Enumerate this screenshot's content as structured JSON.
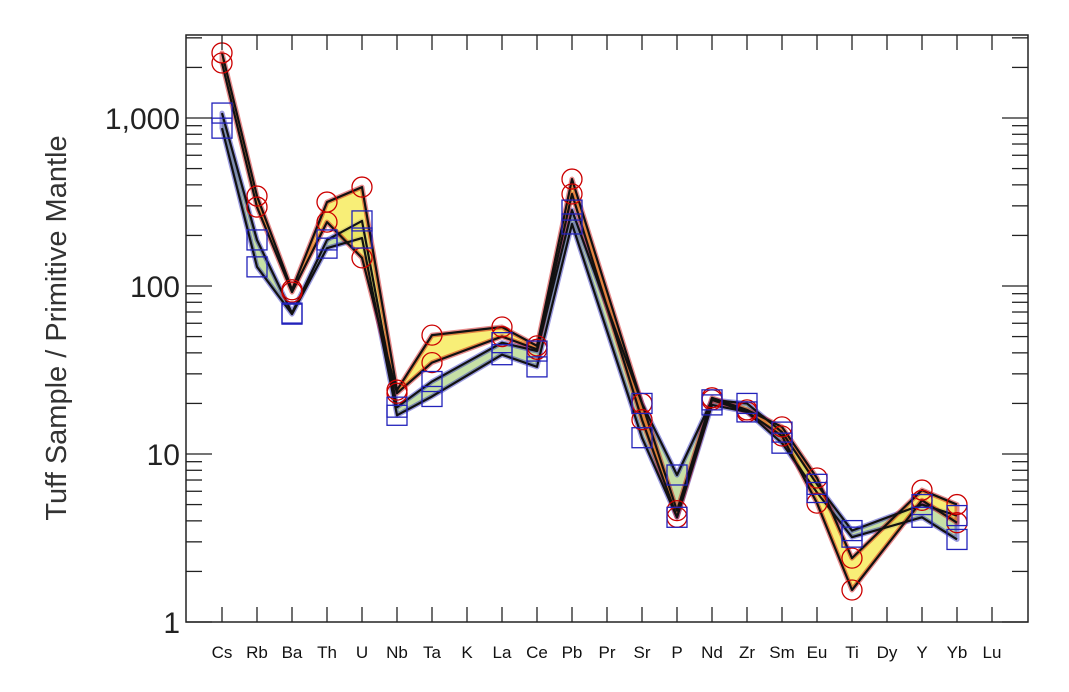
{
  "chart_data": {
    "type": "line",
    "title": "",
    "xlabel": "",
    "ylabel": "Tuff Sample / Primitive Mantle",
    "yscale": "log",
    "ylim": [
      1,
      3100
    ],
    "yticks": [
      1,
      10,
      100,
      1000
    ],
    "ytick_labels": [
      "1",
      "10",
      "100",
      "1,000"
    ],
    "categories": [
      "Cs",
      "Rb",
      "Ba",
      "Th",
      "U",
      "Nb",
      "Ta",
      "K",
      "La",
      "Ce",
      "Pb",
      "Pr",
      "Sr",
      "P",
      "Nd",
      "Zr",
      "Sm",
      "Eu",
      "Ti",
      "Dy",
      "Y",
      "Yb",
      "Lu"
    ],
    "series": [
      {
        "name": "red-upper",
        "group": "red",
        "color": "#cc0000",
        "fill": "#f5e84a",
        "values": [
          2440,
          343,
          95,
          316,
          388,
          24,
          51,
          null,
          57,
          44,
          433,
          null,
          20,
          4.6,
          21.6,
          18.3,
          14.5,
          7.2,
          2.4,
          null,
          6.1,
          5.0,
          null
        ]
      },
      {
        "name": "red-lower",
        "group": "red",
        "color": "#cc0000",
        "fill": "#f5e84a",
        "values": [
          2125,
          295,
          92,
          240,
          147,
          23,
          35,
          null,
          50,
          42,
          353,
          null,
          16,
          4.2,
          21,
          17.8,
          12.8,
          5.1,
          1.55,
          null,
          5.3,
          3.9,
          null
        ]
      },
      {
        "name": "blue-upper",
        "group": "blue",
        "color": "#2222bb",
        "fill": "#b8d890",
        "values": [
          1070,
          188,
          69,
          188,
          244,
          19,
          27,
          null,
          46,
          41,
          283,
          null,
          20,
          7.5,
          21,
          20,
          13.5,
          6.6,
          3.5,
          null,
          5.0,
          4.3,
          null
        ]
      },
      {
        "name": "blue-lower",
        "group": "blue",
        "color": "#2222bb",
        "fill": "#b8d890",
        "values": [
          870,
          130,
          68,
          168,
          193,
          17,
          22,
          null,
          39,
          33,
          234,
          null,
          12.5,
          4.2,
          19.6,
          17.8,
          11.6,
          5.9,
          3.2,
          null,
          4.2,
          3.1,
          null
        ]
      }
    ],
    "grid": false,
    "legend": "none"
  }
}
